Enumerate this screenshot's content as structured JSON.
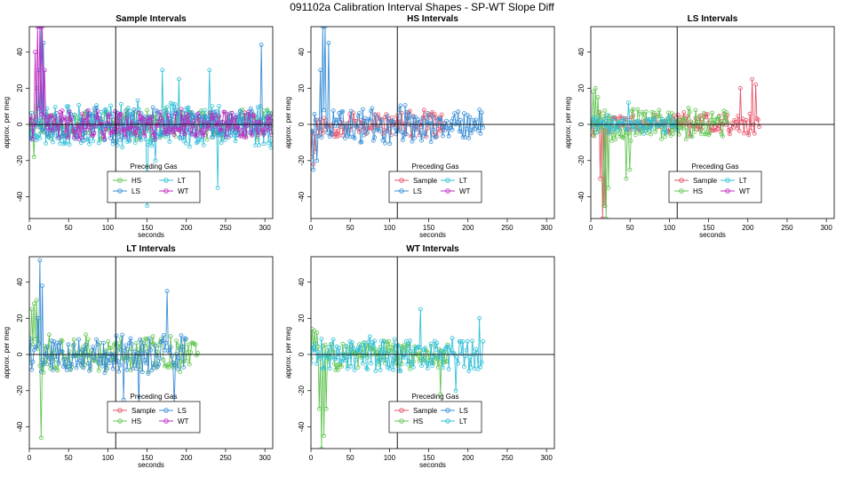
{
  "figure": {
    "title": "091102a   Calibration Interval Shapes - SP-WT Slope Diff"
  },
  "colors": {
    "Sample": "#e5566b",
    "HS": "#61c552",
    "LS": "#3b8fd6",
    "LT": "#32c0d8",
    "WT": "#c02bc0"
  },
  "chart_data": [
    {
      "type": "line",
      "title": "Sample Intervals",
      "xlabel": "seconds",
      "ylabel": "approx. per meg",
      "xlim": [
        0,
        310
      ],
      "ylim": [
        -52,
        54
      ],
      "xticks": [
        0,
        50,
        100,
        150,
        200,
        250,
        300
      ],
      "yticks": [
        -40,
        -20,
        0,
        20,
        40
      ],
      "vline": 110,
      "hline": 0,
      "legend": {
        "title": "Preceding Gas",
        "position": "bottom-center",
        "entries": [
          "HS",
          "LT",
          "LS",
          "WT"
        ]
      },
      "series": [
        {
          "name": "HS",
          "x_range": [
            0,
            310
          ],
          "amp": 8,
          "seed": 11,
          "noise": 0.9,
          "spikes": [
            [
              3,
              2
            ],
            [
              6,
              -18
            ],
            [
              9,
              20
            ]
          ]
        },
        {
          "name": "LT",
          "x_range": [
            0,
            310
          ],
          "amp": 13,
          "seed": 23,
          "noise": 0.9,
          "spikes": [
            [
              150,
              -45
            ],
            [
              160,
              -20
            ],
            [
              170,
              30
            ],
            [
              190,
              25
            ],
            [
              230,
              30
            ],
            [
              240,
              -35
            ]
          ]
        },
        {
          "name": "LS",
          "x_range": [
            0,
            310
          ],
          "amp": 9,
          "seed": 37,
          "noise": 0.9,
          "spikes": [
            [
              12,
              30
            ],
            [
              15,
              54
            ],
            [
              18,
              45
            ],
            [
              295,
              44
            ]
          ]
        },
        {
          "name": "WT",
          "x_range": [
            0,
            310
          ],
          "amp": 8,
          "seed": 41,
          "noise": 0.9,
          "spikes": [
            [
              8,
              40
            ],
            [
              11,
              54
            ],
            [
              14,
              54
            ],
            [
              17,
              54
            ],
            [
              20,
              30
            ]
          ]
        }
      ]
    },
    {
      "type": "line",
      "title": "HS Intervals",
      "xlabel": "seconds",
      "ylabel": "approx. per meg",
      "xlim": [
        0,
        310
      ],
      "ylim": [
        -52,
        54
      ],
      "xticks": [
        0,
        50,
        100,
        150,
        200,
        250,
        300
      ],
      "yticks": [
        -40,
        -20,
        0,
        20,
        40
      ],
      "vline": 110,
      "hline": 0,
      "legend": {
        "title": "Preceding Gas",
        "position": "bottom-center",
        "entries": [
          "Sample",
          "LT",
          "LS",
          "WT"
        ]
      },
      "series": [
        {
          "name": "Sample",
          "x_range": [
            0,
            170
          ],
          "amp": 7,
          "seed": 53,
          "noise": 0.9,
          "spikes": [
            [
              0,
              -18
            ],
            [
              3,
              -22
            ],
            [
              6,
              -15
            ]
          ]
        },
        {
          "name": "LS",
          "x_range": [
            0,
            220
          ],
          "amp": 10,
          "seed": 59,
          "noise": 0.9,
          "spikes": [
            [
              3,
              -25
            ],
            [
              8,
              -20
            ],
            [
              12,
              30
            ],
            [
              15,
              54
            ],
            [
              18,
              54
            ],
            [
              22,
              45
            ]
          ]
        }
      ]
    },
    {
      "type": "line",
      "title": "LS Intervals",
      "xlabel": "seconds",
      "ylabel": "approx. per meg",
      "xlim": [
        0,
        310
      ],
      "ylim": [
        -52,
        54
      ],
      "xticks": [
        0,
        50,
        100,
        150,
        200,
        250,
        300
      ],
      "yticks": [
        -40,
        -20,
        0,
        20,
        40
      ],
      "vline": 110,
      "hline": 0,
      "legend": {
        "title": "Preceding Gas",
        "position": "bottom-center",
        "entries": [
          "Sample",
          "LT",
          "HS",
          "WT"
        ]
      },
      "series": [
        {
          "name": "Sample",
          "x_range": [
            0,
            215
          ],
          "amp": 6,
          "seed": 61,
          "noise": 0.9,
          "spikes": [
            [
              12,
              -30
            ],
            [
              15,
              -52
            ],
            [
              18,
              -45
            ],
            [
              190,
              20
            ],
            [
              205,
              25
            ],
            [
              210,
              22
            ]
          ]
        },
        {
          "name": "HS",
          "x_range": [
            0,
            175
          ],
          "amp": 9,
          "seed": 67,
          "noise": 0.9,
          "spikes": [
            [
              3,
              18
            ],
            [
              6,
              20
            ],
            [
              9,
              15
            ],
            [
              16,
              -45
            ],
            [
              19,
              -52
            ],
            [
              22,
              -35
            ],
            [
              45,
              -30
            ],
            [
              50,
              -25
            ]
          ]
        },
        {
          "name": "LT",
          "x_range": [
            0,
            110
          ],
          "amp": 4,
          "seed": 71,
          "noise": 0.9,
          "spikes": [
            [
              48,
              12
            ]
          ]
        }
      ]
    },
    {
      "type": "line",
      "title": "LT Intervals",
      "xlabel": "seconds",
      "ylabel": "approx. per meg",
      "xlim": [
        0,
        310
      ],
      "ylim": [
        -52,
        54
      ],
      "xticks": [
        0,
        50,
        100,
        150,
        200,
        250,
        300
      ],
      "yticks": [
        -40,
        -20,
        0,
        20,
        40
      ],
      "vline": 110,
      "hline": 0,
      "legend": {
        "title": "Preceding Gas",
        "position": "bottom-center",
        "entries": [
          "Sample",
          "LS",
          "HS",
          "WT"
        ]
      },
      "series": [
        {
          "name": "HS",
          "x_range": [
            0,
            215
          ],
          "amp": 10,
          "seed": 73,
          "noise": 0.9,
          "spikes": [
            [
              3,
              25
            ],
            [
              6,
              28
            ],
            [
              9,
              30
            ],
            [
              12,
              20
            ],
            [
              15,
              -46
            ],
            [
              18,
              -10
            ]
          ]
        },
        {
          "name": "LS",
          "x_range": [
            0,
            200
          ],
          "amp": 11,
          "seed": 79,
          "noise": 0.9,
          "spikes": [
            [
              10,
              20
            ],
            [
              13,
              52
            ],
            [
              16,
              38
            ],
            [
              120,
              -25
            ],
            [
              140,
              -30
            ],
            [
              175,
              35
            ],
            [
              185,
              -28
            ]
          ]
        }
      ]
    },
    {
      "type": "line",
      "title": "WT Intervals",
      "xlabel": "seconds",
      "ylabel": "approx. per meg",
      "xlim": [
        0,
        310
      ],
      "ylim": [
        -52,
        54
      ],
      "xticks": [
        0,
        50,
        100,
        150,
        200,
        250,
        300
      ],
      "yticks": [
        -40,
        -20,
        0,
        20,
        40
      ],
      "vline": 110,
      "hline": 0,
      "legend": {
        "title": "Preceding Gas",
        "position": "bottom-center",
        "entries": [
          "Sample",
          "LS",
          "HS",
          "LT"
        ]
      },
      "series": [
        {
          "name": "HS",
          "x_range": [
            0,
            175
          ],
          "amp": 8,
          "seed": 83,
          "noise": 0.9,
          "spikes": [
            [
              2,
              14
            ],
            [
              5,
              13
            ],
            [
              8,
              12
            ],
            [
              11,
              -30
            ],
            [
              14,
              -52
            ],
            [
              17,
              -45
            ],
            [
              20,
              -30
            ],
            [
              165,
              -22
            ]
          ]
        },
        {
          "name": "LT",
          "x_range": [
            0,
            220
          ],
          "amp": 10,
          "seed": 89,
          "noise": 0.9,
          "spikes": [
            [
              2,
              5
            ],
            [
              140,
              25
            ],
            [
              185,
              -20
            ],
            [
              215,
              20
            ]
          ]
        }
      ]
    }
  ]
}
